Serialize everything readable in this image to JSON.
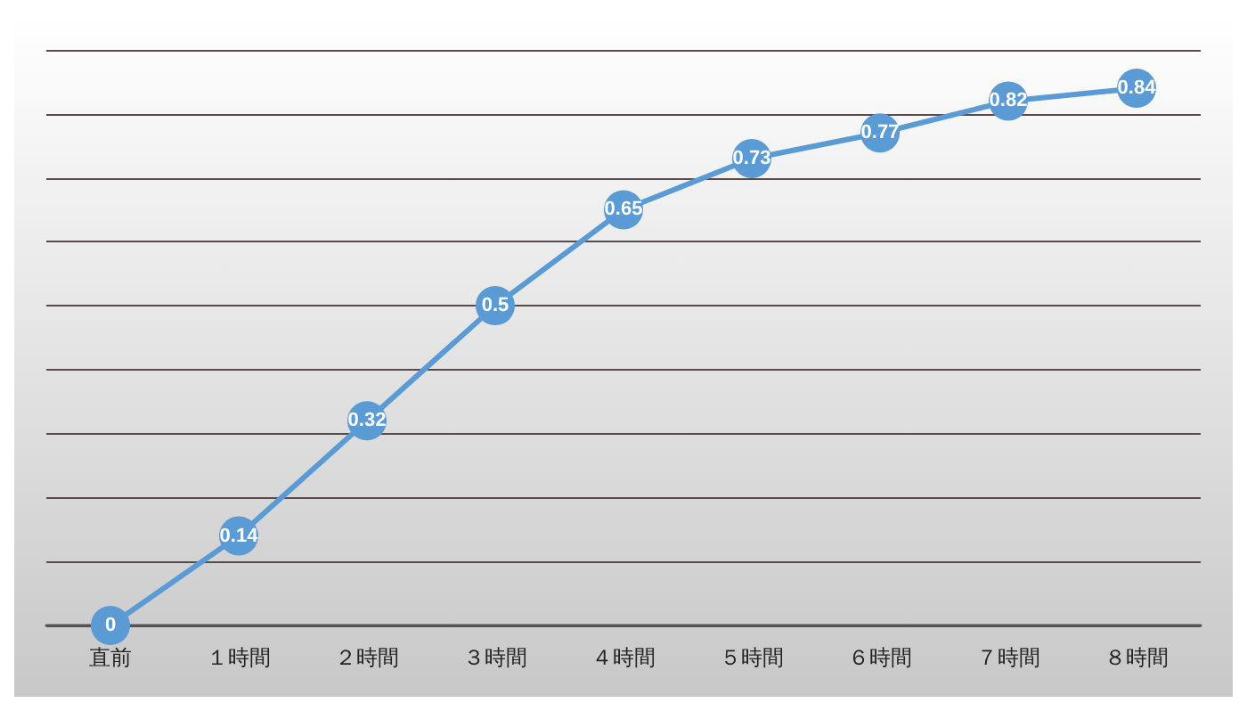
{
  "chart_data": {
    "type": "line",
    "categories": [
      "直前",
      "１時間",
      "２時間",
      "３時間",
      "４時間",
      "５時間",
      "６時間",
      "７時間",
      "８時間"
    ],
    "series": [
      {
        "color": "#5b9bd5",
        "values": [
          0,
          0.14,
          0.32,
          0.5,
          0.65,
          0.73,
          0.77,
          0.82,
          0.84
        ]
      }
    ],
    "ylim": [
      0,
      0.9
    ],
    "yticks": [
      {
        "value": 0,
        "label": null
      },
      {
        "value": 0.1,
        "label": null
      },
      {
        "value": 0.2,
        "label": null
      },
      {
        "value": 0.3,
        "label": null
      },
      {
        "value": 0.4,
        "label": null
      },
      {
        "value": 0.5,
        "label": null
      },
      {
        "value": 0.6,
        "label": null
      },
      {
        "value": 0.7,
        "label": null
      },
      {
        "value": 0.8,
        "label": null
      },
      {
        "value": 0.9,
        "label": null
      }
    ],
    "tick_labels": "x",
    "grid": "y",
    "data_labels": true,
    "marker": "circle",
    "line_style": "solid"
  }
}
